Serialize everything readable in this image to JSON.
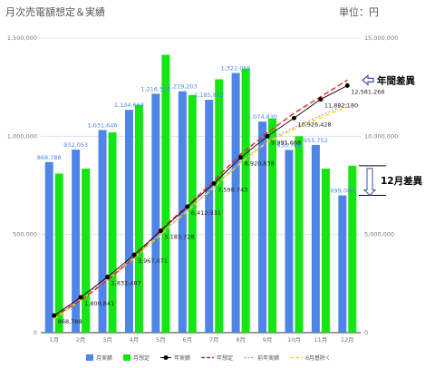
{
  "title": "月次売電額想定＆実績",
  "unit_label": "単位：円",
  "colors": {
    "monthly_actual": "#4e86e8",
    "monthly_plan": "#14e614",
    "annual_actual": "#000000",
    "annual_plan": "#e8221b",
    "prev_year_actual": "#cf7fe8",
    "six_month_base": "#f2e600",
    "annotation_arrow": "#3357a8"
  },
  "chart_data": {
    "type": "bar",
    "title": "月次売電額想定＆実績",
    "categories": [
      "1月",
      "2月",
      "3月",
      "4月",
      "5月",
      "6月",
      "7月",
      "8月",
      "9月",
      "10月",
      "11月",
      "12月"
    ],
    "y_left_ticks": [
      "0",
      "500,000",
      "1,000,000",
      "1,500,000"
    ],
    "y_right_ticks": [
      "0",
      "5,000,000",
      "10,000,000",
      "15,000,000"
    ],
    "ylim_left": [
      0,
      1500000
    ],
    "ylim_right": [
      0,
      15000000
    ],
    "grid": true,
    "legend_position": "bottom",
    "series": [
      {
        "name": "月実績",
        "type": "bar",
        "axis": "left",
        "values": [
          868788,
          932053,
          1031646,
          1134664,
          1216551,
          1229203,
          1185812,
          1322055,
          1074830,
          930760,
          955752,
          699086
        ],
        "labels": [
          "868,788",
          "932,053",
          "1,031,646",
          "1,134,664",
          "1,216,551",
          "1,229,203",
          "1,185,812",
          "1,322,055",
          "1,074,830",
          "930,760",
          "955,752",
          "699,086"
        ]
      },
      {
        "name": "月想定",
        "type": "bar",
        "axis": "left",
        "values": [
          810000,
          835000,
          1020000,
          1160000,
          1415000,
          1210000,
          1290000,
          1345000,
          1090000,
          1000000,
          835000,
          850000
        ]
      },
      {
        "name": "年実績",
        "type": "line",
        "axis": "right",
        "values": [
          868788,
          1800841,
          2832487,
          3967071,
          5183728,
          6412931,
          7598743,
          8920838,
          9995668,
          10926428,
          11882180,
          12581266
        ],
        "labels": [
          "868,788",
          "1,800,841",
          "2,832,487",
          "3,967,071",
          "5,183,728",
          "6,412,931",
          "7,598,743",
          "8,920,838",
          "9,995,668",
          "10,926,428",
          "11,882,180",
          "12,581,266"
        ]
      },
      {
        "name": "年想定",
        "type": "line",
        "axis": "right",
        "values": [
          810000,
          1645000,
          2665000,
          3825000,
          5240000,
          6450000,
          7740000,
          9085000,
          10175000,
          11175000,
          12010000,
          12860000
        ]
      },
      {
        "name": "前年実績",
        "type": "line",
        "axis": "right",
        "values": [
          800000,
          1750000,
          2750000,
          3850000,
          5050000,
          6250000,
          7450000,
          8700000,
          9780000,
          10450000,
          11050000,
          11650000
        ]
      },
      {
        "name": "6月基除く",
        "type": "line",
        "axis": "right",
        "values": [
          700000,
          1650000,
          2650000,
          3800000,
          5000000,
          6200000,
          7400000,
          8650000,
          9700000,
          10350000,
          10950000,
          11500000
        ]
      }
    ],
    "annotations": [
      {
        "text": "年間差異"
      },
      {
        "text": "12月差異"
      }
    ]
  }
}
